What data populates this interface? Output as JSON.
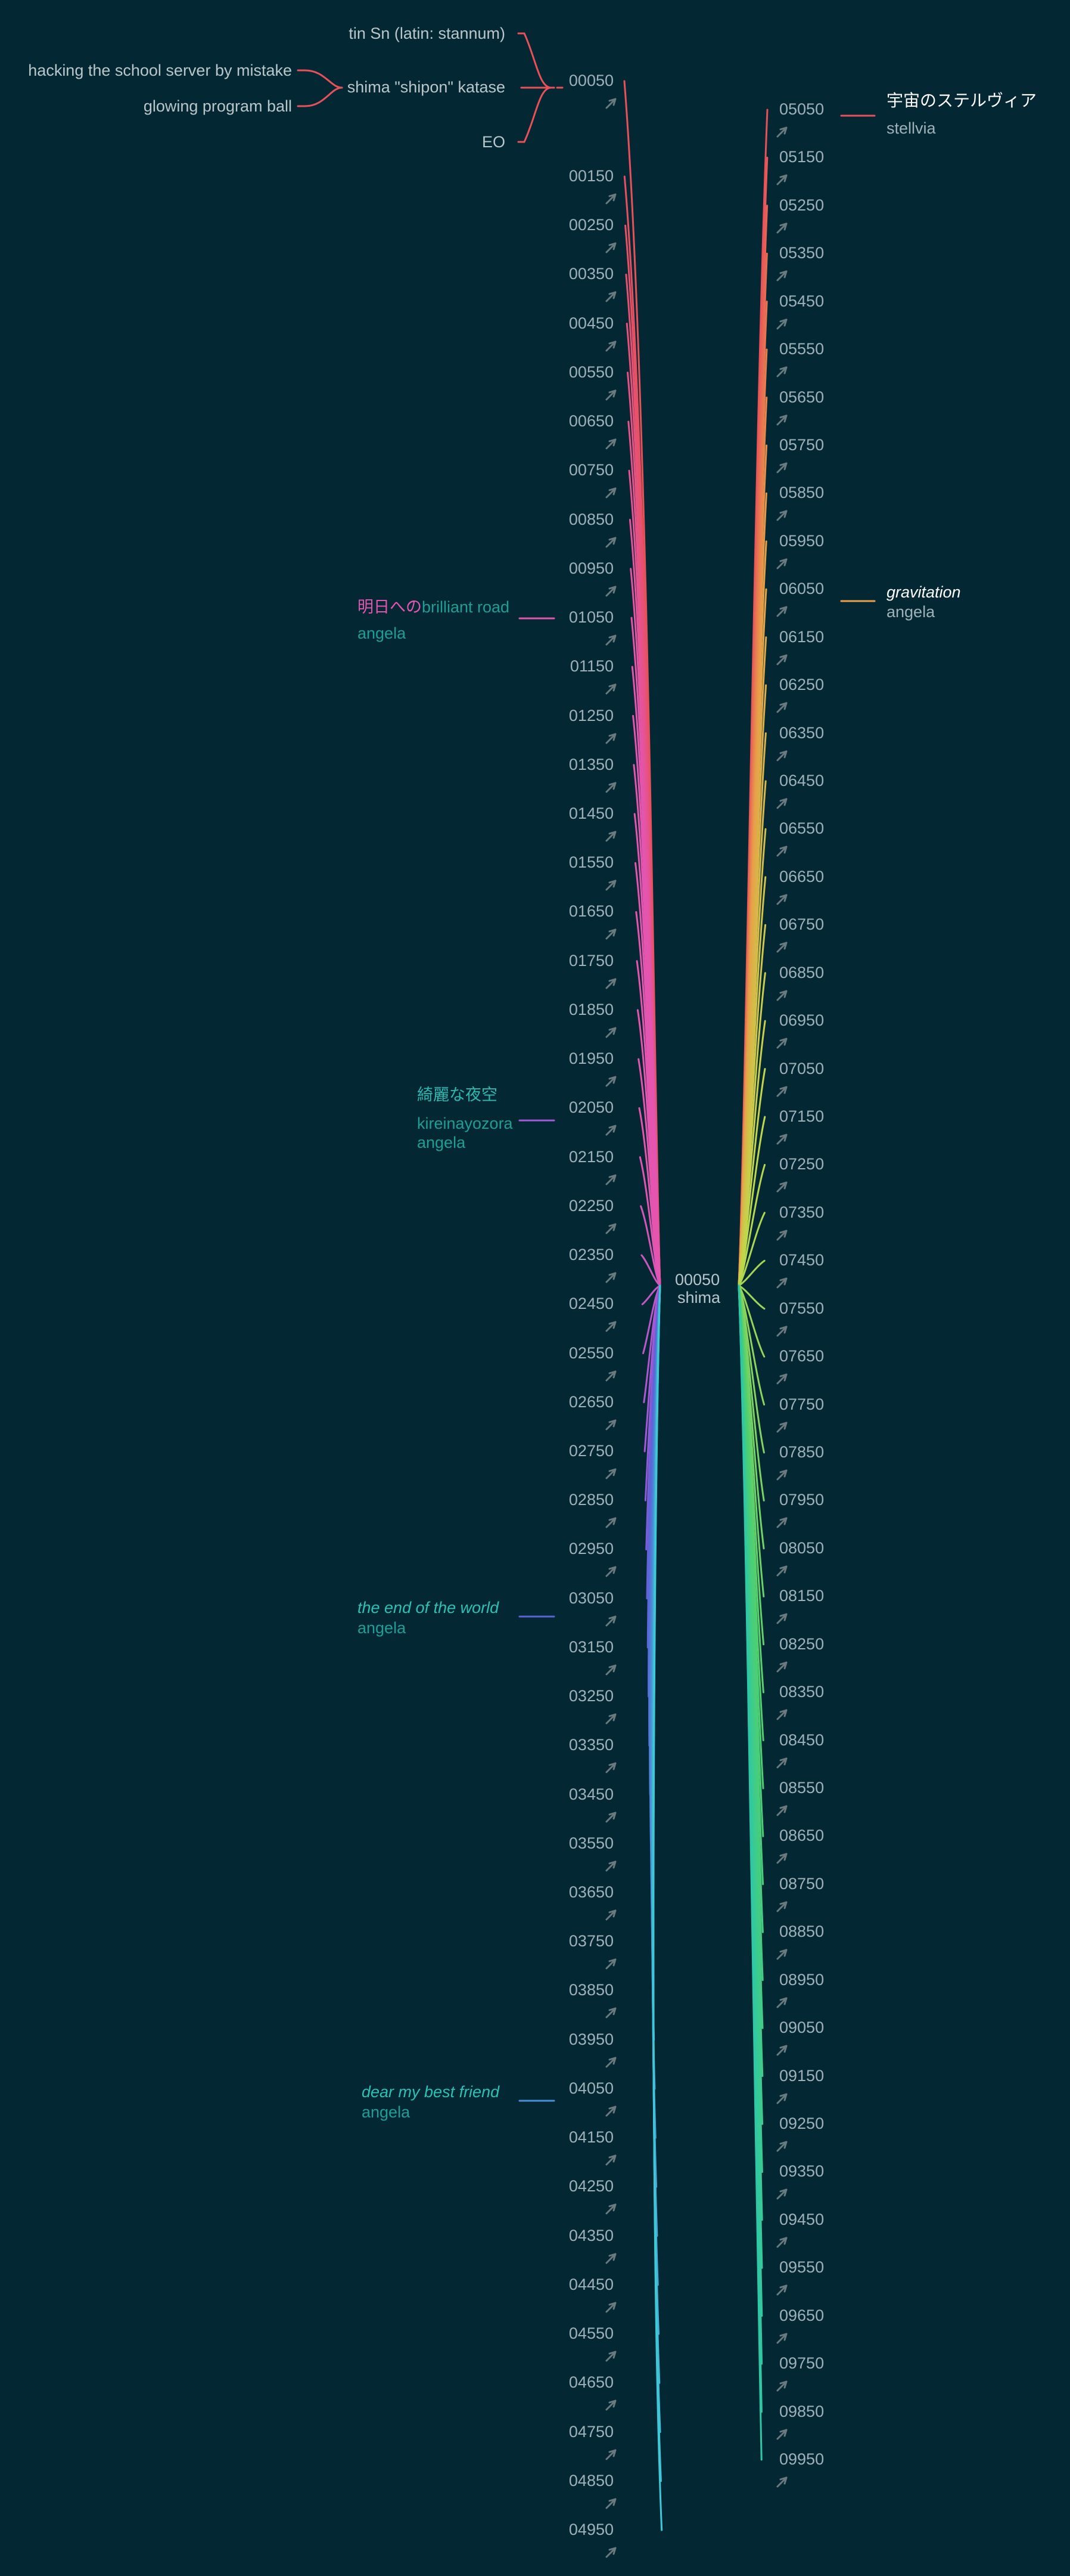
{
  "center": {
    "number": "00050",
    "label": "shima"
  },
  "left_numbers": [
    "00050",
    "00150",
    "00250",
    "00350",
    "00450",
    "00550",
    "00650",
    "00750",
    "00850",
    "00950",
    "01050",
    "01150",
    "01250",
    "01350",
    "01450",
    "01550",
    "01650",
    "01750",
    "01850",
    "01950",
    "02050",
    "02150",
    "02250",
    "02350",
    "02450",
    "02550",
    "02650",
    "02750",
    "02850",
    "02950",
    "03050",
    "03150",
    "03250",
    "03350",
    "03450",
    "03550",
    "03650",
    "03750",
    "03850",
    "03950",
    "04050",
    "04150",
    "04250",
    "04350",
    "04450",
    "04550",
    "04650",
    "04750",
    "04850",
    "04950"
  ],
  "right_numbers": [
    "05050",
    "05150",
    "05250",
    "05350",
    "05450",
    "05550",
    "05650",
    "05750",
    "05850",
    "05950",
    "06050",
    "06150",
    "06250",
    "06350",
    "06450",
    "06550",
    "06650",
    "06750",
    "06850",
    "06950",
    "07050",
    "07150",
    "07250",
    "07350",
    "07450",
    "07550",
    "07650",
    "07750",
    "07850",
    "07950",
    "08050",
    "08150",
    "08250",
    "08350",
    "08450",
    "08550",
    "08650",
    "08750",
    "08850",
    "08950",
    "09050",
    "09150",
    "09250",
    "09350",
    "09450",
    "09550",
    "09650",
    "09750",
    "09850",
    "09950"
  ],
  "top_branch": {
    "main": "shima \"shipon\" katase",
    "children": [
      "tin Sn (latin: stannum)",
      "EO"
    ],
    "sub": [
      "hacking the school server by mistake",
      "glowing program ball"
    ]
  },
  "annotations": {
    "a01050": {
      "line1_jp": "明日への",
      "line1_en": "brilliant road",
      "line2": "angela"
    },
    "a02050": {
      "line1": "綺麗な夜空",
      "line2": "kireinayozora",
      "line3": "angela"
    },
    "a03050": {
      "line1": "the end of the world",
      "line2": "angela"
    },
    "a04050": {
      "line1": "dear my best friend",
      "line2": "angela"
    },
    "a05050": {
      "line1": "宇宙のステルヴィア",
      "line2": "stellvia"
    },
    "a06050": {
      "line1": "gravitation",
      "line2": "angela"
    }
  },
  "colors": {
    "background": "#042833",
    "number_text": "#9fb1b8",
    "arrow": "#6b7a7f",
    "red": "#e8505a",
    "pink": "#e455b0",
    "violet": "#a459d6",
    "indigo": "#5d62d8",
    "blue": "#4a8fd6",
    "cyan": "#3fc9d8",
    "orange": "#e8a048",
    "yellow": "#c2d84a",
    "green": "#4fd070",
    "teal": "#2ec8a6",
    "teal_text": "#1e9e95",
    "white_text": "#ffffff"
  }
}
